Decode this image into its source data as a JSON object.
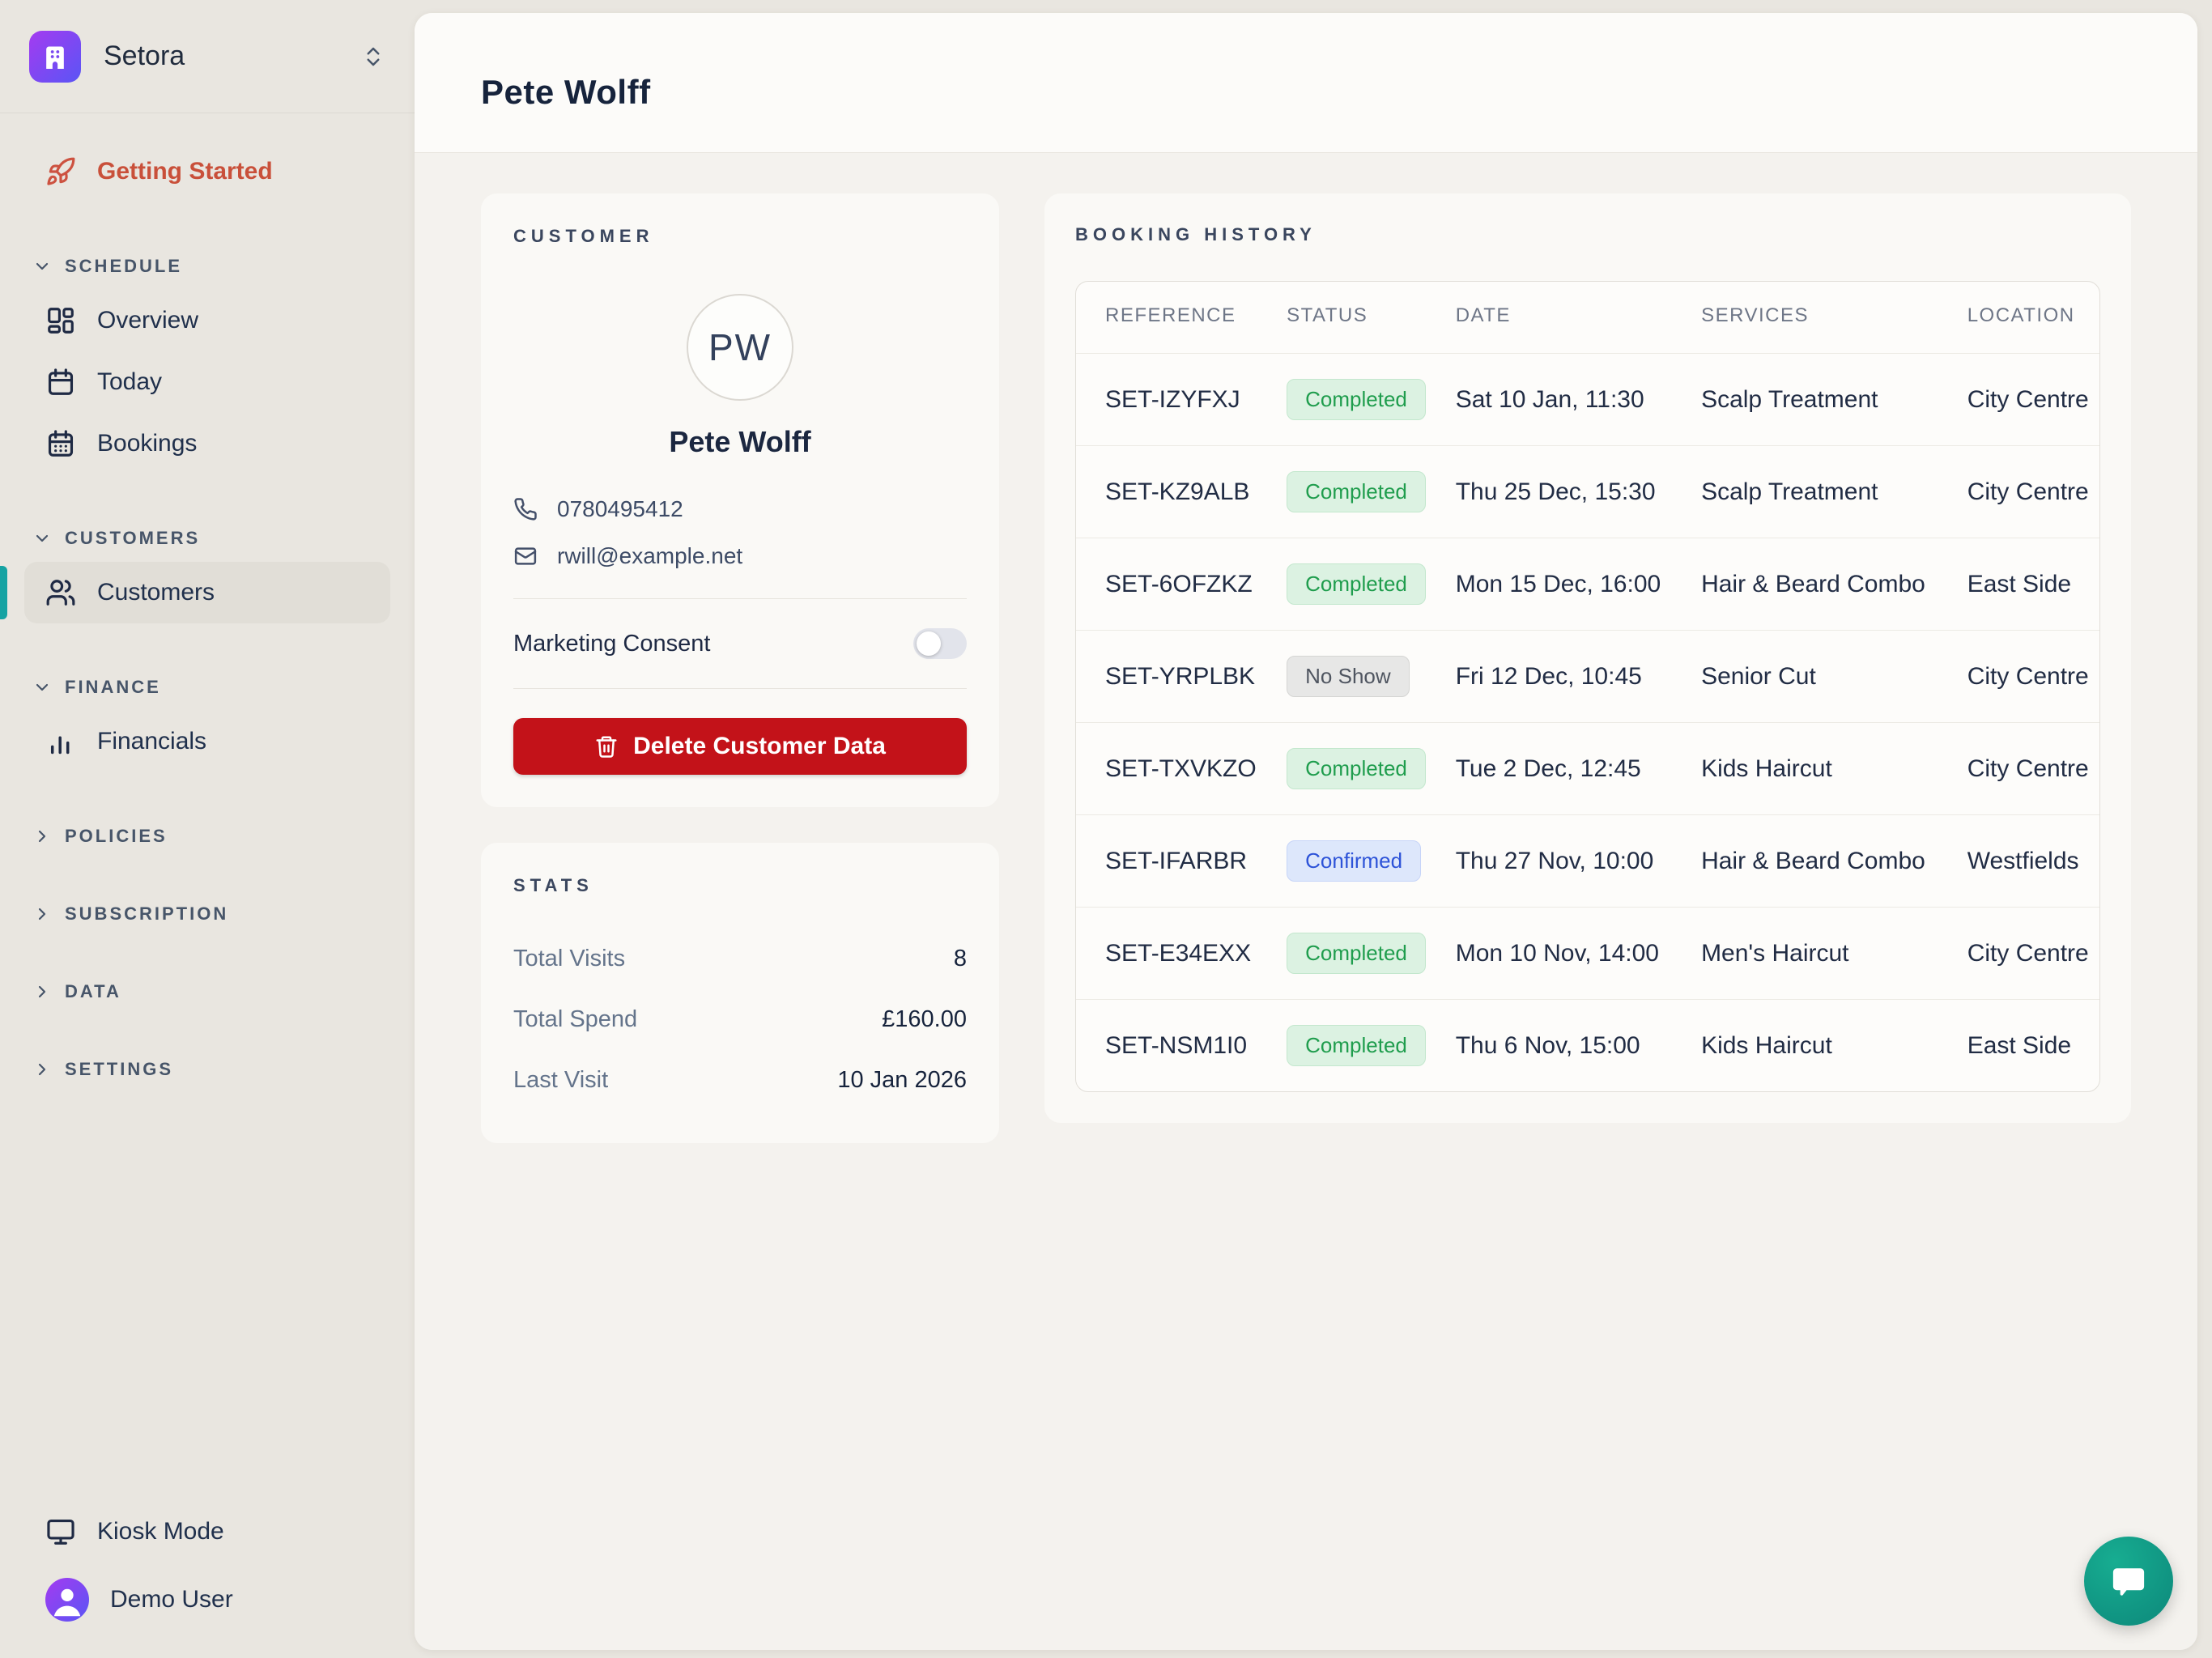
{
  "colors": {
    "sidebar_bg": "#e9e6e0",
    "accent_teal": "#16a3a3",
    "getting_started_orange": "#c9503a",
    "brand_from": "#a43bf0",
    "brand_to": "#5a55f5",
    "delete_red": "#c31219",
    "status_completed_text": "#1f9d4d",
    "status_confirmed_text": "#2d53d8",
    "status_noshow_text": "#4f5560",
    "chat_teal": "#12997f"
  },
  "sidebar": {
    "brand_name": "Setora",
    "getting_started_label": "Getting Started",
    "sections": [
      {
        "label": "SCHEDULE",
        "expanded": true,
        "items": [
          {
            "label": "Overview"
          },
          {
            "label": "Today"
          },
          {
            "label": "Bookings"
          }
        ]
      },
      {
        "label": "CUSTOMERS",
        "expanded": true,
        "items": [
          {
            "label": "Customers",
            "active": true
          }
        ]
      },
      {
        "label": "FINANCE",
        "expanded": true,
        "items": [
          {
            "label": "Financials"
          }
        ]
      },
      {
        "label": "POLICIES",
        "expanded": false,
        "items": []
      },
      {
        "label": "SUBSCRIPTION",
        "expanded": false,
        "items": []
      },
      {
        "label": "DATA",
        "expanded": false,
        "items": []
      },
      {
        "label": "SETTINGS",
        "expanded": false,
        "items": []
      }
    ],
    "footer": {
      "kiosk_label": "Kiosk Mode",
      "user_label": "Demo User"
    }
  },
  "header": {
    "title": "Pete Wolff"
  },
  "customer": {
    "section_label": "CUSTOMER",
    "initials": "PW",
    "name": "Pete Wolff",
    "phone": "0780495412",
    "email": "rwill@example.net",
    "marketing_label": "Marketing Consent",
    "marketing_enabled": false,
    "delete_label": "Delete Customer Data"
  },
  "stats": {
    "section_label": "STATS",
    "rows": [
      {
        "label": "Total Visits",
        "value": "8"
      },
      {
        "label": "Total Spend",
        "value": "£160.00"
      },
      {
        "label": "Last Visit",
        "value": "10 Jan 2026"
      }
    ]
  },
  "bookings": {
    "section_label": "BOOKING HISTORY",
    "columns": [
      "REFERENCE",
      "STATUS",
      "DATE",
      "SERVICES",
      "LOCATION"
    ],
    "rows": [
      {
        "reference": "SET-IZYFXJ",
        "status": "Completed",
        "status_type": "completed",
        "date": "Sat 10 Jan, 11:30",
        "services": "Scalp Treatment",
        "location": "City Centre"
      },
      {
        "reference": "SET-KZ9ALB",
        "status": "Completed",
        "status_type": "completed",
        "date": "Thu 25 Dec, 15:30",
        "services": "Scalp Treatment",
        "location": "City Centre"
      },
      {
        "reference": "SET-6OFZKZ",
        "status": "Completed",
        "status_type": "completed",
        "date": "Mon 15 Dec, 16:00",
        "services": "Hair & Beard Combo",
        "location": "East Side"
      },
      {
        "reference": "SET-YRPLBK",
        "status": "No Show",
        "status_type": "noshow",
        "date": "Fri 12 Dec, 10:45",
        "services": "Senior Cut",
        "location": "City Centre"
      },
      {
        "reference": "SET-TXVKZO",
        "status": "Completed",
        "status_type": "completed",
        "date": "Tue 2 Dec, 12:45",
        "services": "Kids Haircut",
        "location": "City Centre"
      },
      {
        "reference": "SET-IFARBR",
        "status": "Confirmed",
        "status_type": "confirmed",
        "date": "Thu 27 Nov, 10:00",
        "services": "Hair & Beard Combo",
        "location": "Westfields"
      },
      {
        "reference": "SET-E34EXX",
        "status": "Completed",
        "status_type": "completed",
        "date": "Mon 10 Nov, 14:00",
        "services": "Men's Haircut",
        "location": "City Centre"
      },
      {
        "reference": "SET-NSM1I0",
        "status": "Completed",
        "status_type": "completed",
        "date": "Thu 6 Nov, 15:00",
        "services": "Kids Haircut",
        "location": "East Side"
      }
    ]
  }
}
